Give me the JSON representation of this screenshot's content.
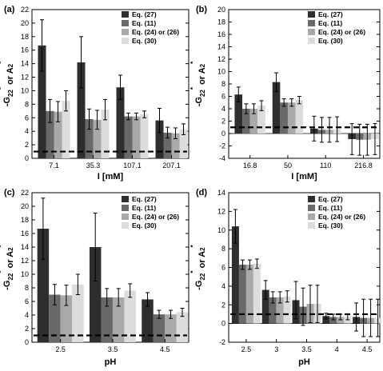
{
  "chart_data": [
    {
      "type": "bar",
      "panel_label": "(a)",
      "xlabel": "I [mM]",
      "ylabel": "-G22* or A2*",
      "ylim": [
        0,
        22
      ],
      "yticks": [
        0,
        2,
        4,
        6,
        8,
        10,
        12,
        14,
        16,
        18,
        20,
        22
      ],
      "categories": [
        "7.1",
        "35.3",
        "107.1",
        "207.1"
      ],
      "reference_line": 1,
      "legend_position": "top-right",
      "series": [
        {
          "name": "Eq. (27)",
          "color": "#2e2e2e",
          "values": [
            16.7,
            14.2,
            10.5,
            5.6
          ],
          "errors": [
            3.8,
            3.8,
            1.8,
            1.8
          ]
        },
        {
          "name": "Eq. (11)",
          "color": "#696969",
          "values": [
            7.0,
            5.8,
            6.2,
            3.8
          ],
          "errors": [
            1.7,
            1.5,
            0.5,
            0.8
          ]
        },
        {
          "name": "Eq. (24) or (26)",
          "color": "#a9a9a9",
          "values": [
            6.9,
            5.7,
            6.2,
            3.7
          ],
          "errors": [
            1.5,
            1.4,
            0.5,
            0.8
          ]
        },
        {
          "name": "Eq. (30)",
          "color": "#dcdcdc",
          "values": [
            8.5,
            7.2,
            6.5,
            4.3
          ],
          "errors": [
            1.5,
            1.5,
            0.5,
            0.8
          ]
        }
      ]
    },
    {
      "type": "bar",
      "panel_label": "(b)",
      "xlabel": "I [mM]",
      "ylabel": "-G22* or A2*",
      "ylim": [
        -4,
        20
      ],
      "yticks": [
        -4,
        -2,
        0,
        2,
        4,
        6,
        8,
        10,
        12,
        14,
        16,
        18,
        20
      ],
      "categories": [
        "16.8",
        "50",
        "110",
        "216.8"
      ],
      "reference_line": 1,
      "legend_position": "top-right",
      "series": [
        {
          "name": "Eq. (27)",
          "color": "#2e2e2e",
          "values": [
            6.3,
            8.3,
            0.8,
            -0.9
          ],
          "errors": [
            1.2,
            1.5,
            2.0,
            2.5
          ]
        },
        {
          "name": "Eq. (11)",
          "color": "#696969",
          "values": [
            4.0,
            5.0,
            0.6,
            -1.0
          ],
          "errors": [
            0.8,
            0.6,
            2.0,
            2.5
          ]
        },
        {
          "name": "Eq. (24) or (26)",
          "color": "#a9a9a9",
          "values": [
            4.0,
            5.0,
            0.6,
            -1.0
          ],
          "errors": [
            0.8,
            0.6,
            2.0,
            2.5
          ]
        },
        {
          "name": "Eq. (30)",
          "color": "#dcdcdc",
          "values": [
            4.5,
            5.4,
            0.7,
            -0.9
          ],
          "errors": [
            0.8,
            0.6,
            2.0,
            2.5
          ]
        }
      ]
    },
    {
      "type": "bar",
      "panel_label": "(c)",
      "xlabel": "pH",
      "ylabel": "-G22* or A2*",
      "ylim": [
        0,
        22
      ],
      "yticks": [
        0,
        2,
        4,
        6,
        8,
        10,
        12,
        14,
        16,
        18,
        20,
        22
      ],
      "categories": [
        "2.5",
        "3.5",
        "4.5"
      ],
      "reference_line": 1,
      "legend_position": "top-right",
      "series": [
        {
          "name": "Eq. (27)",
          "color": "#2e2e2e",
          "values": [
            16.7,
            14.0,
            6.3
          ],
          "errors": [
            4.5,
            5.0,
            1.0
          ]
        },
        {
          "name": "Eq. (11)",
          "color": "#696969",
          "values": [
            7.0,
            6.6,
            4.1
          ],
          "errors": [
            1.5,
            1.3,
            0.6
          ]
        },
        {
          "name": "Eq. (24) or (26)",
          "color": "#a9a9a9",
          "values": [
            6.9,
            6.6,
            4.1
          ],
          "errors": [
            1.5,
            1.3,
            0.6
          ]
        },
        {
          "name": "Eq. (30)",
          "color": "#dcdcdc",
          "values": [
            8.5,
            7.6,
            4.4
          ],
          "errors": [
            1.5,
            1.0,
            0.6
          ]
        }
      ]
    },
    {
      "type": "bar",
      "panel_label": "(d)",
      "xlabel": "pH",
      "ylabel": "-G22* or A2*",
      "ylim": [
        -2,
        14
      ],
      "yticks": [
        -2,
        0,
        2,
        4,
        6,
        8,
        10,
        12,
        14
      ],
      "categories": [
        "2.5",
        "3",
        "3.5",
        "4",
        "4.5"
      ],
      "reference_line": 1,
      "legend_position": "top-right",
      "series": [
        {
          "name": "Eq. (27)",
          "color": "#2e2e2e",
          "values": [
            10.4,
            3.6,
            2.5,
            0.8,
            0.7
          ],
          "errors": [
            1.8,
            1.0,
            2.0,
            0.3,
            1.5
          ]
        },
        {
          "name": "Eq. (11)",
          "color": "#696969",
          "values": [
            6.3,
            2.8,
            1.8,
            0.7,
            0.6
          ],
          "errors": [
            0.5,
            0.6,
            2.0,
            0.3,
            2.0
          ]
        },
        {
          "name": "Eq. (24) or (26)",
          "color": "#a9a9a9",
          "values": [
            6.3,
            2.8,
            2.1,
            0.7,
            0.6
          ],
          "errors": [
            0.5,
            0.6,
            2.0,
            0.3,
            2.0
          ]
        },
        {
          "name": "Eq. (30)",
          "color": "#dcdcdc",
          "values": [
            6.4,
            2.9,
            2.1,
            0.7,
            0.6
          ],
          "errors": [
            0.5,
            0.6,
            2.0,
            0.3,
            2.0
          ]
        }
      ]
    }
  ]
}
